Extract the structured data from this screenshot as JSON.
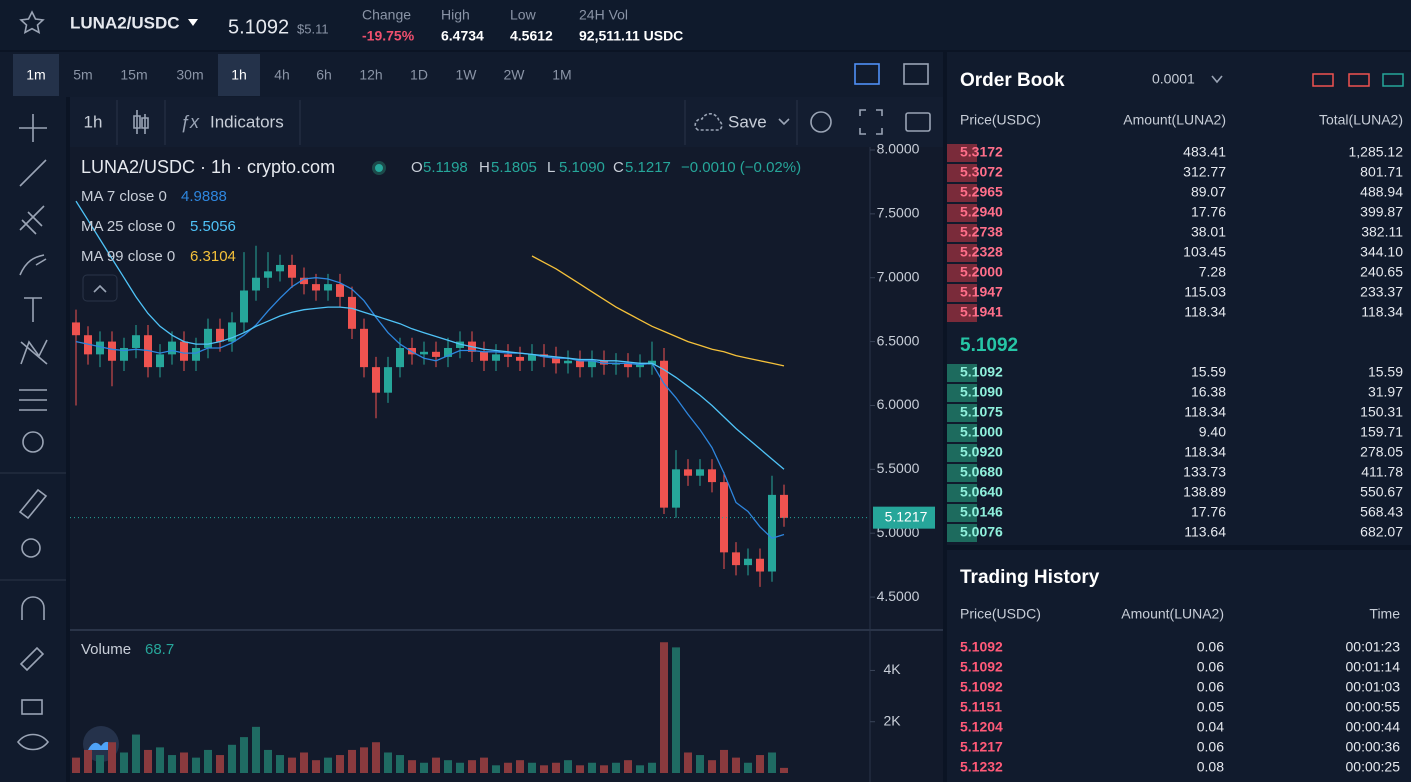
{
  "header": {
    "pair": "LUNA2/USDC",
    "price": "5.1092",
    "price_usd": "$5.11",
    "stats": [
      {
        "label": "Change",
        "value": "-19.75%"
      },
      {
        "label": "High",
        "value": "6.4734"
      },
      {
        "label": "Low",
        "value": "4.5612"
      },
      {
        "label": "24H Vol",
        "value": "92,511.11 USDC"
      }
    ]
  },
  "timeframes": [
    "1m",
    "5m",
    "15m",
    "30m",
    "1h",
    "4h",
    "6h",
    "12h",
    "1D",
    "1W",
    "2W",
    "1M"
  ],
  "toolbar": {
    "interval": "1h",
    "indicators": "Indicators",
    "save": "Save"
  },
  "chart_data": {
    "type": "candlestick",
    "title": "LUNA2/USDC · 1h · crypto.com",
    "ohlc": [
      {
        "label": "O",
        "value": "5.1198"
      },
      {
        "label": "H",
        "value": "5.1805"
      },
      {
        "label": "L",
        "value": "5.1090"
      },
      {
        "label": "C",
        "value": "5.1217"
      }
    ],
    "change": "−0.0010 (−0.02%)",
    "candles": {
      "open": [
        6.65,
        6.55,
        6.4,
        6.5,
        6.35,
        6.45,
        6.55,
        6.3,
        6.4,
        6.5,
        6.35,
        6.45,
        6.6,
        6.5,
        6.65,
        6.9,
        7.0,
        7.05,
        7.1,
        7.0,
        6.95,
        6.9,
        6.95,
        6.85,
        6.6,
        6.3,
        6.1,
        6.3,
        6.45,
        6.4,
        6.42,
        6.38,
        6.45,
        6.5,
        6.42,
        6.35,
        6.4,
        6.38,
        6.35,
        6.4,
        6.38,
        6.33,
        6.35,
        6.3,
        6.35,
        6.32,
        6.33,
        6.3,
        6.32,
        6.35,
        5.2,
        5.5,
        5.45,
        5.5,
        5.4,
        4.85,
        4.75,
        4.8,
        4.7,
        5.3
      ],
      "high": [
        6.75,
        6.62,
        6.58,
        6.58,
        6.53,
        6.63,
        6.63,
        6.48,
        6.58,
        6.58,
        6.53,
        6.68,
        6.68,
        6.73,
        7.2,
        7.25,
        7.2,
        7.18,
        7.18,
        7.08,
        7.03,
        7.03,
        7.03,
        6.93,
        6.68,
        6.38,
        6.38,
        6.53,
        6.53,
        6.5,
        6.5,
        6.53,
        6.58,
        6.58,
        6.5,
        6.48,
        6.48,
        6.46,
        6.48,
        6.48,
        6.46,
        6.43,
        6.43,
        6.43,
        6.43,
        6.41,
        6.41,
        6.4,
        6.5,
        6.45,
        5.65,
        5.58,
        5.58,
        5.58,
        5.48,
        4.93,
        4.88,
        4.88,
        5.45,
        5.38
      ],
      "low": [
        6.0,
        6.32,
        6.3,
        6.15,
        6.27,
        6.37,
        6.22,
        6.22,
        6.32,
        6.27,
        6.27,
        6.37,
        6.42,
        6.42,
        6.57,
        6.82,
        6.92,
        6.97,
        6.92,
        6.87,
        6.82,
        6.82,
        6.77,
        6.52,
        6.22,
        5.9,
        6.02,
        6.22,
        6.32,
        6.32,
        6.3,
        6.3,
        6.37,
        6.34,
        6.27,
        6.27,
        6.3,
        6.27,
        6.27,
        6.3,
        6.25,
        6.25,
        6.22,
        6.22,
        6.24,
        6.24,
        6.22,
        6.22,
        6.24,
        5.15,
        5.12,
        5.37,
        5.37,
        5.32,
        4.72,
        4.67,
        4.67,
        4.58,
        4.62,
        5.05
      ],
      "close": [
        6.55,
        6.4,
        6.5,
        6.35,
        6.45,
        6.55,
        6.3,
        6.4,
        6.5,
        6.35,
        6.45,
        6.6,
        6.5,
        6.65,
        6.9,
        7.0,
        7.05,
        7.1,
        7.0,
        6.95,
        6.9,
        6.95,
        6.85,
        6.6,
        6.3,
        6.1,
        6.3,
        6.45,
        6.4,
        6.42,
        6.38,
        6.45,
        6.5,
        6.42,
        6.35,
        6.4,
        6.38,
        6.35,
        6.4,
        6.38,
        6.33,
        6.35,
        6.3,
        6.35,
        6.32,
        6.33,
        6.3,
        6.32,
        6.35,
        5.2,
        5.5,
        5.45,
        5.5,
        5.4,
        4.85,
        4.75,
        4.8,
        4.7,
        5.3,
        5.12
      ]
    },
    "up_color": "#26a69a",
    "down_color": "#ef5350",
    "series": [
      {
        "name": "MA 7 close 0",
        "legend_value": "4.9888",
        "color": "#2e86de",
        "values": [
          6.5,
          6.48,
          6.46,
          6.44,
          6.43,
          6.44,
          6.43,
          6.41,
          6.43,
          6.41,
          6.41,
          6.45,
          6.45,
          6.49,
          6.55,
          6.63,
          6.74,
          6.84,
          6.93,
          6.99,
          7.0,
          6.99,
          6.96,
          6.91,
          6.82,
          6.69,
          6.57,
          6.48,
          6.42,
          6.37,
          6.35,
          6.39,
          6.43,
          6.43,
          6.42,
          6.42,
          6.41,
          6.41,
          6.4,
          6.38,
          6.37,
          6.37,
          6.35,
          6.35,
          6.33,
          6.33,
          6.33,
          6.32,
          6.33,
          6.17,
          6.06,
          5.93,
          5.81,
          5.67,
          5.47,
          5.24,
          5.17,
          5.05,
          4.96,
          4.99
        ]
      },
      {
        "name": "MA 25 close 0",
        "legend_value": "5.5056",
        "color": "#4fc3f7",
        "values": [
          7.6,
          7.45,
          7.3,
          7.15,
          7.0,
          6.85,
          6.72,
          6.62,
          6.55,
          6.5,
          6.48,
          6.48,
          6.5,
          6.53,
          6.57,
          6.62,
          6.66,
          6.7,
          6.73,
          6.75,
          6.76,
          6.77,
          6.77,
          6.76,
          6.73,
          6.7,
          6.67,
          6.64,
          6.6,
          6.57,
          6.54,
          6.51,
          6.48,
          6.46,
          6.44,
          6.43,
          6.42,
          6.41,
          6.4,
          6.39,
          6.38,
          6.37,
          6.36,
          6.36,
          6.35,
          6.35,
          6.34,
          6.33,
          6.33,
          6.28,
          6.22,
          6.15,
          6.08,
          6.0,
          5.91,
          5.82,
          5.74,
          5.66,
          5.58,
          5.5
        ]
      },
      {
        "name": "MA 99 close 0",
        "legend_value": "6.3104",
        "color": "#f5c13a",
        "values": [
          null,
          null,
          null,
          null,
          null,
          null,
          null,
          null,
          null,
          null,
          null,
          null,
          null,
          null,
          null,
          null,
          null,
          null,
          null,
          null,
          null,
          null,
          null,
          null,
          null,
          null,
          null,
          null,
          null,
          null,
          null,
          null,
          null,
          null,
          null,
          null,
          null,
          null,
          7.17,
          7.12,
          7.07,
          7.01,
          6.95,
          6.89,
          6.83,
          6.77,
          6.72,
          6.67,
          6.62,
          6.58,
          6.54,
          6.5,
          6.47,
          6.44,
          6.42,
          6.39,
          6.37,
          6.35,
          6.33,
          6.31
        ]
      }
    ],
    "ylim": [
      4.25,
      8.05
    ],
    "yticks": [
      {
        "value": 8.0,
        "label": "8.0000"
      },
      {
        "value": 7.5,
        "label": "7.5000"
      },
      {
        "value": 7.0,
        "label": "7.0000"
      },
      {
        "value": 6.5,
        "label": "6.5000"
      },
      {
        "value": 6.0,
        "label": "6.0000"
      },
      {
        "value": 5.5,
        "label": "5.5000"
      },
      {
        "value": 5.0,
        "label": "5.0000"
      },
      {
        "value": 4.5,
        "label": "4.5000"
      }
    ],
    "last_price": 5.1217,
    "volume": {
      "name": "Volume",
      "legend_value": "68.7",
      "values": [
        600,
        900,
        700,
        1200,
        800,
        1500,
        900,
        1000,
        700,
        800,
        600,
        900,
        700,
        1100,
        1400,
        1800,
        900,
        700,
        600,
        800,
        500,
        600,
        700,
        900,
        1000,
        1200,
        800,
        700,
        500,
        400,
        600,
        500,
        400,
        500,
        600,
        300,
        400,
        500,
        400,
        300,
        400,
        500,
        300,
        400,
        300,
        400,
        500,
        300,
        400,
        5100,
        4900,
        800,
        700,
        500,
        900,
        600,
        400,
        700,
        800,
        200
      ],
      "ylim": [
        0,
        5500
      ],
      "yticks": [
        {
          "value": 4000,
          "label": "4K"
        },
        {
          "value": 2000,
          "label": "2K"
        }
      ]
    }
  },
  "order_book": {
    "title": "Order Book",
    "precision": "0.0001",
    "columns": [
      "Price(USDC)",
      "Amount(LUNA2)",
      "Total(LUNA2)"
    ],
    "asks": [
      [
        "5.3172",
        "483.41",
        "1,285.12"
      ],
      [
        "5.3072",
        "312.77",
        "801.71"
      ],
      [
        "5.2965",
        "89.07",
        "488.94"
      ],
      [
        "5.2940",
        "17.76",
        "399.87"
      ],
      [
        "5.2738",
        "38.01",
        "382.11"
      ],
      [
        "5.2328",
        "103.45",
        "344.10"
      ],
      [
        "5.2000",
        "7.28",
        "240.65"
      ],
      [
        "5.1947",
        "115.03",
        "233.37"
      ],
      [
        "5.1941",
        "118.34",
        "118.34"
      ]
    ],
    "mid_price": "5.1092",
    "bids": [
      [
        "5.1092",
        "15.59",
        "15.59"
      ],
      [
        "5.1090",
        "16.38",
        "31.97"
      ],
      [
        "5.1075",
        "118.34",
        "150.31"
      ],
      [
        "5.1000",
        "9.40",
        "159.71"
      ],
      [
        "5.0920",
        "118.34",
        "278.05"
      ],
      [
        "5.0680",
        "133.73",
        "411.78"
      ],
      [
        "5.0640",
        "138.89",
        "550.67"
      ],
      [
        "5.0146",
        "17.76",
        "568.43"
      ],
      [
        "5.0076",
        "113.64",
        "682.07"
      ]
    ]
  },
  "trading_history": {
    "title": "Trading History",
    "columns": [
      "Price(USDC)",
      "Amount(LUNA2)",
      "Time"
    ],
    "rows": [
      [
        "5.1092",
        "0.06",
        "00:01:23"
      ],
      [
        "5.1092",
        "0.06",
        "00:01:14"
      ],
      [
        "5.1092",
        "0.06",
        "00:01:03"
      ],
      [
        "5.1151",
        "0.05",
        "00:00:55"
      ],
      [
        "5.1204",
        "0.04",
        "00:00:44"
      ],
      [
        "5.1217",
        "0.06",
        "00:00:36"
      ],
      [
        "5.1232",
        "0.08",
        "00:00:25"
      ]
    ]
  }
}
